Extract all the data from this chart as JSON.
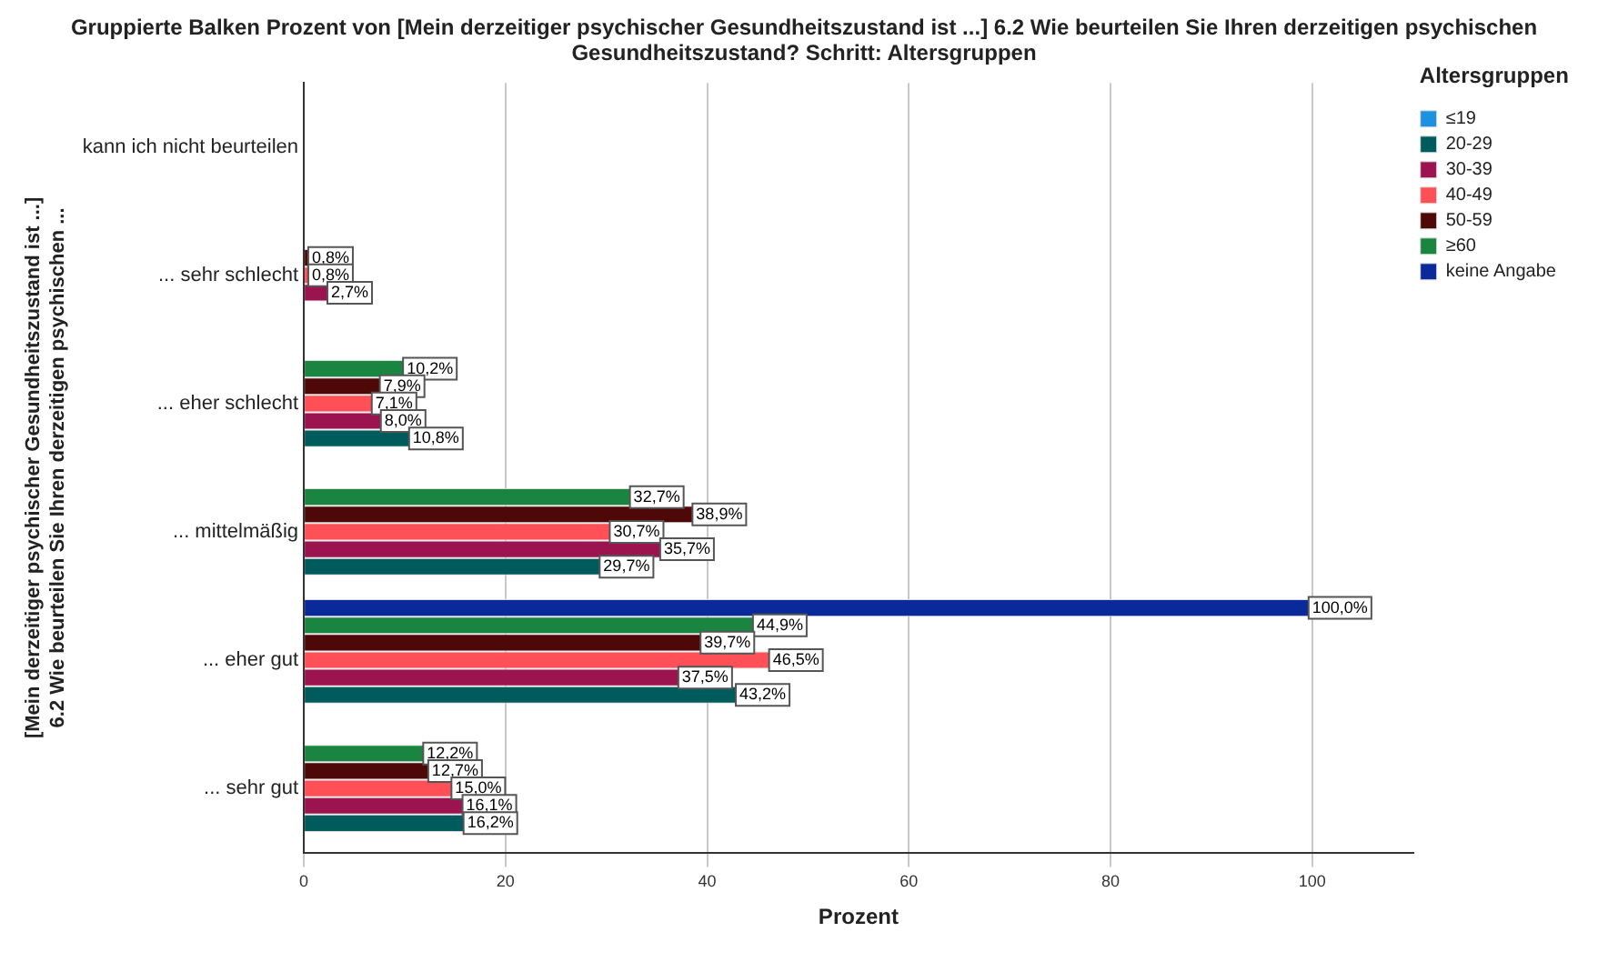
{
  "chart_data": {
    "type": "bar",
    "orientation": "horizontal",
    "title": "Gruppierte Balken Prozent von [Mein derzeitiger psychischer Gesundheitszustand ist ...] 6.2 Wie beurteilen Sie Ihren derzeitigen psychischen Gesundheitszustand? Schritt: Altersgruppen",
    "xlabel": "Prozent",
    "ylabel": "[Mein derzeitiger psychischer Gesundheitszustand ist ...] 6.2 Wie beurteilen Sie Ihren derzeitigen psychischen ...",
    "legend_title": "Altersgruppen",
    "legend": "top right",
    "grid": "x",
    "categories": [
      "kann ich nicht beurteilen",
      "... sehr schlecht",
      "... eher schlecht",
      "... mittelmäßig",
      "... eher gut",
      "... sehr gut"
    ],
    "xlim": [
      0,
      110
    ],
    "xticks": [
      0,
      20,
      40,
      60,
      80,
      100
    ],
    "series": [
      {
        "name": "≤19",
        "color": "#1e90e0",
        "values": [
          null,
          null,
          null,
          null,
          null,
          null
        ],
        "value_labels": [
          null,
          null,
          null,
          null,
          null,
          null
        ]
      },
      {
        "name": "20-29",
        "color": "#005c5c",
        "values": [
          null,
          null,
          10.8,
          29.7,
          43.2,
          16.2
        ],
        "value_labels": [
          null,
          null,
          "10,8%",
          "29,7%",
          "43,2%",
          "16,2%"
        ]
      },
      {
        "name": "30-39",
        "color": "#9b1450",
        "values": [
          null,
          2.7,
          8.0,
          35.7,
          37.5,
          16.1
        ],
        "value_labels": [
          null,
          "2,7%",
          "8,0%",
          "35,7%",
          "37,5%",
          "16,1%"
        ]
      },
      {
        "name": "40-49",
        "color": "#ff5058",
        "values": [
          null,
          0.8,
          7.1,
          30.7,
          46.5,
          15.0
        ],
        "value_labels": [
          null,
          "0,8%",
          "7,1%",
          "30,7%",
          "46,5%",
          "15,0%"
        ]
      },
      {
        "name": "50-59",
        "color": "#4e0808",
        "values": [
          null,
          0.8,
          7.9,
          38.9,
          39.7,
          12.7
        ],
        "value_labels": [
          null,
          "0,8%",
          "7,9%",
          "38,9%",
          "39,7%",
          "12,7%"
        ]
      },
      {
        "name": "≥60",
        "color": "#1a8540",
        "values": [
          null,
          null,
          10.2,
          32.7,
          44.9,
          12.2
        ],
        "value_labels": [
          null,
          null,
          "10,2%",
          "32,7%",
          "44,9%",
          "12,2%"
        ]
      },
      {
        "name": "keine Angabe",
        "color": "#0a2a9c",
        "values": [
          null,
          null,
          null,
          null,
          100.0,
          null
        ],
        "value_labels": [
          null,
          null,
          null,
          null,
          "100,0%",
          null
        ]
      }
    ]
  }
}
